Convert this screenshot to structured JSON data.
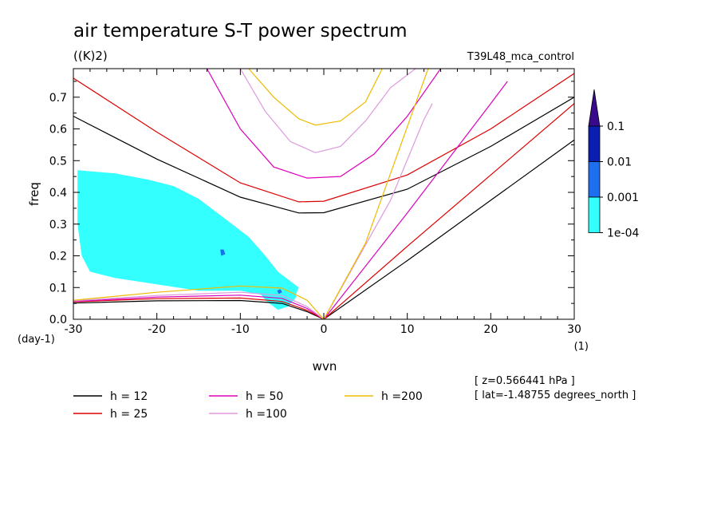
{
  "chart_data": {
    "type": "line",
    "title": "air temperature S-T power spectrum",
    "units": "((K)2)",
    "dataset": "T39L48_mca_control",
    "xlabel": "wvn",
    "ylabel": "freq",
    "x_unit_label": "(1)",
    "y_unit_label": "(day-1)",
    "xlim": [
      -30,
      30
    ],
    "ylim": [
      0,
      0.79
    ],
    "xticks": [
      -30,
      -20,
      -10,
      0,
      10,
      20,
      30
    ],
    "xtick_labels": [
      "-30",
      "-20",
      "-10",
      "0",
      "10",
      "20",
      "30"
    ],
    "yticks": [
      0,
      0.1,
      0.2,
      0.3,
      0.4,
      0.5,
      0.6,
      0.7
    ],
    "ytick_labels": [
      "0.0",
      "0.1",
      "0.2",
      "0.3",
      "0.4",
      "0.5",
      "0.6",
      "0.7"
    ],
    "info_lines": [
      "[ z=0.566441 hPa ]",
      "[ lat=-1.48755 degrees_north ]"
    ],
    "colorbar": {
      "labels": [
        "0.1",
        "0.01",
        "0.001",
        "1e-04"
      ],
      "colors": [
        "#3a0a8c",
        "#0a1fb0",
        "#1e6ef0",
        "#33ffff"
      ]
    },
    "legend": [
      {
        "label": "h = 12",
        "color": "#000000"
      },
      {
        "label": "h = 25",
        "color": "#dd0000"
      },
      {
        "label": "h = 50",
        "color": "#dd00bb"
      },
      {
        "label": "h =100",
        "color": "#dd99dd"
      },
      {
        "label": "h =200",
        "color": "#eebb00"
      }
    ],
    "dispersion_curves": [
      {
        "h": 12,
        "color": "#000000",
        "kelvin": [
          [
            0,
            0
          ],
          [
            10,
            0.185
          ],
          [
            20,
            0.375
          ],
          [
            30,
            0.565
          ]
        ],
        "rossby": [
          [
            -30,
            0.051
          ],
          [
            -20,
            0.058
          ],
          [
            -10,
            0.059
          ],
          [
            -5,
            0.05
          ],
          [
            -2,
            0.024
          ],
          [
            0,
            0
          ]
        ],
        "gravity": [
          [
            -30,
            0.64
          ],
          [
            -20,
            0.505
          ],
          [
            -10,
            0.385
          ],
          [
            -3,
            0.335
          ],
          [
            0,
            0.336
          ],
          [
            10,
            0.41
          ],
          [
            20,
            0.545
          ],
          [
            30,
            0.7
          ]
        ]
      },
      {
        "h": 25,
        "color": "#dd0000",
        "kelvin": [
          [
            0,
            0
          ],
          [
            10,
            0.23
          ],
          [
            20,
            0.455
          ],
          [
            30,
            0.68
          ]
        ],
        "rossby": [
          [
            -30,
            0.055
          ],
          [
            -20,
            0.065
          ],
          [
            -10,
            0.067
          ],
          [
            -5,
            0.056
          ],
          [
            -2,
            0.028
          ],
          [
            0,
            0
          ]
        ],
        "gravity": [
          [
            -30,
            0.76
          ],
          [
            -20,
            0.59
          ],
          [
            -10,
            0.43
          ],
          [
            -3,
            0.37
          ],
          [
            0,
            0.372
          ],
          [
            10,
            0.455
          ],
          [
            20,
            0.6
          ],
          [
            30,
            0.775
          ]
        ]
      },
      {
        "h": 50,
        "color": "#dd00bb",
        "kelvin": [
          [
            0,
            0
          ],
          [
            10,
            0.335
          ],
          [
            20,
            0.68
          ],
          [
            22,
            0.75
          ]
        ],
        "rossby": [
          [
            -30,
            0.056
          ],
          [
            -20,
            0.07
          ],
          [
            -10,
            0.076
          ],
          [
            -5,
            0.066
          ],
          [
            -2,
            0.034
          ],
          [
            0,
            0
          ]
        ],
        "gravity": [
          [
            -14,
            0.79
          ],
          [
            -10,
            0.6
          ],
          [
            -6,
            0.48
          ],
          [
            -2,
            0.445
          ],
          [
            2,
            0.45
          ],
          [
            6,
            0.52
          ],
          [
            10,
            0.64
          ],
          [
            14,
            0.79
          ]
        ]
      },
      {
        "h": 100,
        "color": "#dd99dd",
        "kelvin": [
          [
            0,
            0
          ],
          [
            8,
            0.375
          ],
          [
            12,
            0.63
          ],
          [
            13,
            0.68
          ]
        ],
        "rossby": [
          [
            -30,
            0.058
          ],
          [
            -20,
            0.075
          ],
          [
            -10,
            0.085
          ],
          [
            -5,
            0.075
          ],
          [
            -2,
            0.04
          ],
          [
            0,
            0
          ]
        ],
        "gravity": [
          [
            -10,
            0.79
          ],
          [
            -7,
            0.655
          ],
          [
            -4,
            0.56
          ],
          [
            -1,
            0.525
          ],
          [
            2,
            0.545
          ],
          [
            5,
            0.625
          ],
          [
            8,
            0.73
          ],
          [
            11,
            0.79
          ]
        ]
      },
      {
        "h": 200,
        "color": "#eebb00",
        "kelvin": [
          [
            0,
            0
          ],
          [
            5,
            0.24
          ],
          [
            8,
            0.46
          ],
          [
            12.5,
            0.79
          ]
        ],
        "rossby": [
          [
            -30,
            0.06
          ],
          [
            -20,
            0.085
          ],
          [
            -10,
            0.105
          ],
          [
            -5,
            0.098
          ],
          [
            -2,
            0.06
          ],
          [
            0,
            0
          ]
        ],
        "gravity": [
          [
            -9,
            0.79
          ],
          [
            -6,
            0.7
          ],
          [
            -3,
            0.632
          ],
          [
            -1,
            0.612
          ],
          [
            2,
            0.625
          ],
          [
            5,
            0.685
          ],
          [
            7,
            0.79
          ]
        ]
      }
    ],
    "power_regions": [
      {
        "level": "1e-04",
        "color": "#33ffff",
        "polygon": [
          [
            -29.5,
            0.47
          ],
          [
            -25,
            0.46
          ],
          [
            -21,
            0.44
          ],
          [
            -18,
            0.42
          ],
          [
            -15,
            0.38
          ],
          [
            -12,
            0.32
          ],
          [
            -9,
            0.26
          ],
          [
            -7,
            0.2
          ],
          [
            -5.5,
            0.15
          ],
          [
            -4,
            0.12
          ],
          [
            -3,
            0.1
          ],
          [
            -3.5,
            0.07
          ],
          [
            -6,
            0.07
          ],
          [
            -10,
            0.09
          ],
          [
            -15,
            0.09
          ],
          [
            -20,
            0.11
          ],
          [
            -25,
            0.13
          ],
          [
            -28,
            0.15
          ],
          [
            -29,
            0.2
          ],
          [
            -29.5,
            0.3
          ]
        ]
      },
      {
        "level": "1e-04",
        "color": "#33ffff",
        "polygon": [
          [
            -9,
            0.13
          ],
          [
            -6,
            0.14
          ],
          [
            -4.5,
            0.12
          ],
          [
            -3.6,
            0.1
          ],
          [
            -3.3,
            0.07
          ],
          [
            -4.3,
            0.04
          ],
          [
            -5.5,
            0.03
          ],
          [
            -7,
            0.06
          ]
        ]
      },
      {
        "level": "0.001",
        "color": "#1e6ef0",
        "polygon": [
          [
            -12.4,
            0.22
          ],
          [
            -12,
            0.22
          ],
          [
            -11.8,
            0.205
          ],
          [
            -12.3,
            0.2
          ]
        ]
      },
      {
        "level": "0.001",
        "color": "#1e6ef0",
        "polygon": [
          [
            -5.6,
            0.09
          ],
          [
            -5.2,
            0.095
          ],
          [
            -5,
            0.085
          ],
          [
            -5.4,
            0.08
          ]
        ]
      }
    ]
  }
}
